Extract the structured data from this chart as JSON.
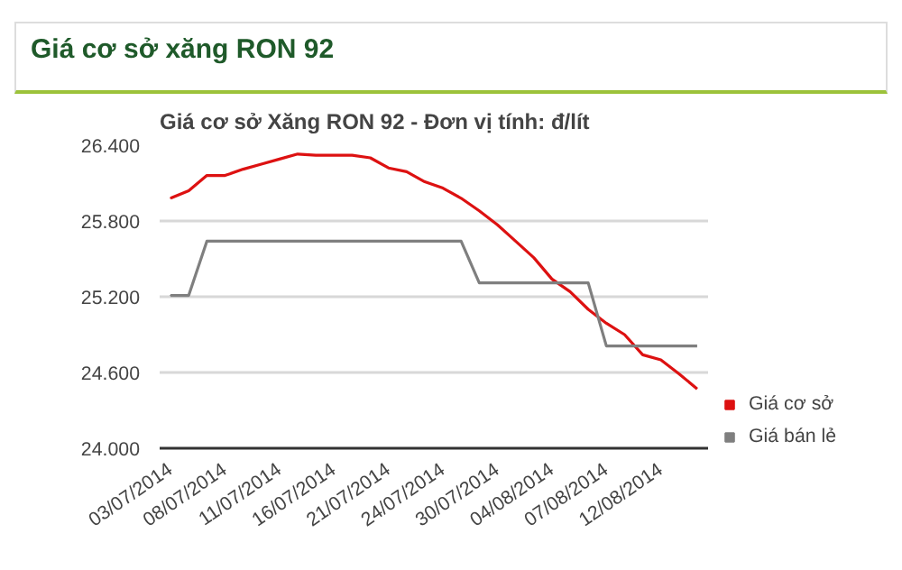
{
  "chart_data": {
    "type": "line",
    "title": "Giá cơ sở xăng RON 92",
    "subtitle": "Giá cơ sở Xăng RON 92 - Đơn vị tính: đ/lít",
    "categories": [
      "03/07/2014",
      null,
      null,
      "08/07/2014",
      null,
      null,
      "11/07/2014",
      null,
      null,
      "16/07/2014",
      null,
      null,
      "21/07/2014",
      null,
      null,
      "24/07/2014",
      null,
      null,
      "30/07/2014",
      null,
      null,
      "04/08/2014",
      null,
      null,
      "07/08/2014",
      null,
      null,
      "12/08/2014",
      null,
      null
    ],
    "series": [
      {
        "name": "Giá cơ sở",
        "color": "#dd1111",
        "values": [
          25980,
          26040,
          26160,
          26160,
          26210,
          26250,
          26290,
          26330,
          26320,
          26320,
          26320,
          26300,
          26220,
          26190,
          26110,
          26060,
          25980,
          25880,
          25770,
          25640,
          25510,
          25340,
          25240,
          25100,
          24990,
          24900,
          24740,
          24700,
          24590,
          24470
        ]
      },
      {
        "name": "Giá bán lẻ",
        "color": "#7f7f7f",
        "values": [
          25210,
          25210,
          25640,
          25640,
          25640,
          25640,
          25640,
          25640,
          25640,
          25640,
          25640,
          25640,
          25640,
          25640,
          25640,
          25640,
          25640,
          25310,
          25310,
          25310,
          25310,
          25310,
          25310,
          25310,
          24810,
          24810,
          24810,
          24810,
          24810,
          24810
        ]
      }
    ],
    "ylim": [
      24000,
      26400
    ],
    "yticks": [
      {
        "value": 24000,
        "label": "24.000"
      },
      {
        "value": 24600,
        "label": "24.600"
      },
      {
        "value": 25200,
        "label": "25.200"
      },
      {
        "value": 25800,
        "label": "25.800"
      },
      {
        "value": 26400,
        "label": "26.400"
      }
    ],
    "grid": "y",
    "legend": "right",
    "marker": "none",
    "line_style": "solid"
  }
}
